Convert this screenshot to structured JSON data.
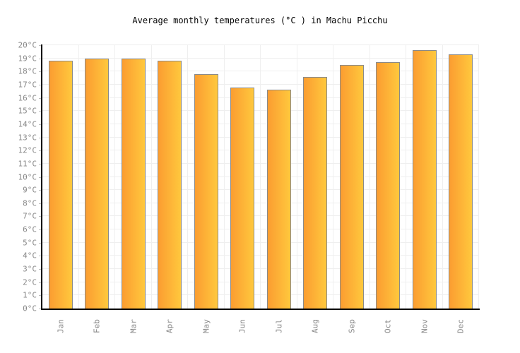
{
  "chart_data": {
    "type": "bar",
    "title": "Average monthly temperatures (°C ) in Machu Picchu",
    "categories": [
      "Jan",
      "Feb",
      "Mar",
      "Apr",
      "May",
      "Jun",
      "Jul",
      "Aug",
      "Sep",
      "Oct",
      "Nov",
      "Dec"
    ],
    "values": [
      18.8,
      19.0,
      19.0,
      18.8,
      17.8,
      16.8,
      16.6,
      17.6,
      18.5,
      18.7,
      19.6,
      19.3
    ],
    "unit": "°C",
    "xlabel": "",
    "ylabel": "",
    "ylim": [
      0,
      20
    ],
    "ytick_step": 1,
    "ytick_labels": [
      "20°C",
      "19°C",
      "18°C",
      "17°C",
      "16°C",
      "15°C",
      "14°C",
      "13°C",
      "12°C",
      "11°C",
      "10°C",
      "9°C",
      "8°C",
      "7°C",
      "6°C",
      "5°C",
      "4°C",
      "3°C",
      "2°C",
      "1°C",
      "0°C"
    ],
    "grid": true,
    "legend": false,
    "layout_hints": {
      "bar_orientation": "vertical",
      "x_label_rotation_deg": -90,
      "gridlines": "horizontal-every-1-degree-and-vertical-column-boundaries"
    },
    "colors": {
      "bar_gradient_left": "#fb9d31",
      "bar_gradient_right": "#ffc83d",
      "bar_border": "#8a8a8a",
      "gridline": "#efefef",
      "axis": "#000000",
      "tick_label": "#888888",
      "title": "#000000",
      "background": "#ffffff"
    }
  }
}
